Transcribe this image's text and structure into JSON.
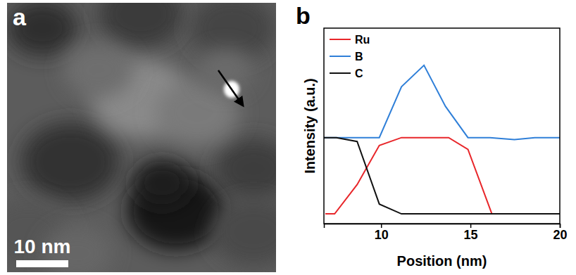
{
  "image_panel": {
    "label": "a",
    "scale_bar": "10 nm"
  },
  "chart_panel": {
    "label": "b"
  },
  "chart_data": {
    "type": "line",
    "x_label": "Position (nm)",
    "y_label": "Intensity (a.u.)",
    "xlim": [
      6.8,
      20
    ],
    "xticks": [
      10,
      15,
      20
    ],
    "ylim": [
      0,
      10
    ],
    "tick_labels": "x",
    "legend": "upper left",
    "series": [
      {
        "name": "Ru",
        "color": "#e8262a",
        "x": [
          6.88,
          7.4,
          8.66,
          9.9,
          11.14,
          12.54,
          13.78,
          14.86,
          16.2
        ],
        "values": [
          0.5,
          0.5,
          2.0,
          4.0,
          4.4,
          4.4,
          4.4,
          3.8,
          0.5
        ]
      },
      {
        "name": "B",
        "color": "#2f7fd8",
        "x": [
          6.8,
          9.9,
          11.14,
          12.4,
          13.6,
          14.86,
          16.1,
          17.46,
          18.6,
          20
        ],
        "values": [
          4.4,
          4.4,
          7.0,
          8.1,
          6.0,
          4.4,
          4.4,
          4.3,
          4.4,
          4.4
        ]
      },
      {
        "name": "C",
        "color": "#111111",
        "x": [
          6.8,
          7.5,
          8.66,
          9.9,
          11.14,
          20
        ],
        "values": [
          4.4,
          4.4,
          4.2,
          1.0,
          0.5,
          0.5
        ]
      }
    ]
  }
}
